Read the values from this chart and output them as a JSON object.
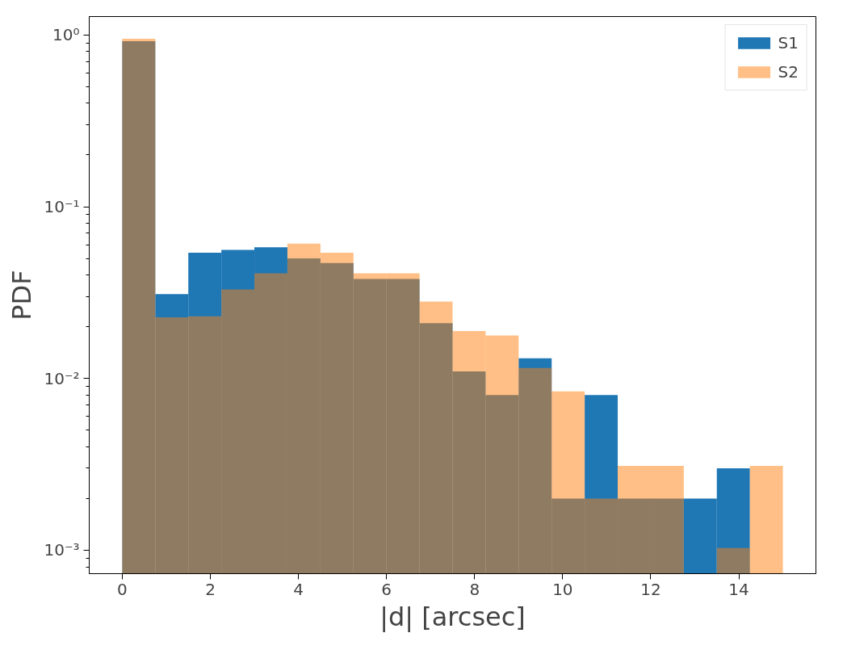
{
  "chart_data": {
    "type": "histogram",
    "xlabel": "|d| [arcsec]",
    "ylabel": "PDF",
    "bins": [
      0,
      0.75,
      1.5,
      2.25,
      3,
      3.75,
      4.5,
      5.25,
      6,
      6.75,
      7.5,
      8.25,
      9,
      9.75,
      10.5,
      11.25,
      12,
      12.75,
      13.5,
      14.25,
      15
    ],
    "series": [
      {
        "name": "S1",
        "color": "#1f77b4",
        "values": [
          0.92,
          0.031,
          0.054,
          0.056,
          0.058,
          0.05,
          0.047,
          0.038,
          0.038,
          0.021,
          0.011,
          0.008,
          0.0131,
          0.002,
          0.008,
          0.002,
          0.002,
          0.002,
          0.003,
          null
        ]
      },
      {
        "name": "S2",
        "color": "#ff7f0e",
        "values": [
          0.95,
          0.0227,
          0.023,
          0.033,
          0.041,
          0.061,
          0.054,
          0.041,
          0.041,
          0.028,
          0.0189,
          0.0178,
          0.0115,
          0.0084,
          0.002,
          0.0031,
          0.0031,
          null,
          0.00103,
          0.0031
        ]
      }
    ],
    "log": "y",
    "xlim": [
      -0.75,
      15.75
    ],
    "xticks": [
      0,
      2,
      4,
      6,
      8,
      10,
      12,
      14
    ],
    "ylim": [
      0.00073,
      1.28
    ],
    "yticks": [
      {
        "value": 0.001,
        "label": "10⁻³"
      },
      {
        "value": 0.01,
        "label": "10⁻²"
      },
      {
        "value": 0.1,
        "label": "10⁻¹"
      },
      {
        "value": 1,
        "label": "10⁰"
      }
    ],
    "grid": false,
    "legend": "top right"
  }
}
